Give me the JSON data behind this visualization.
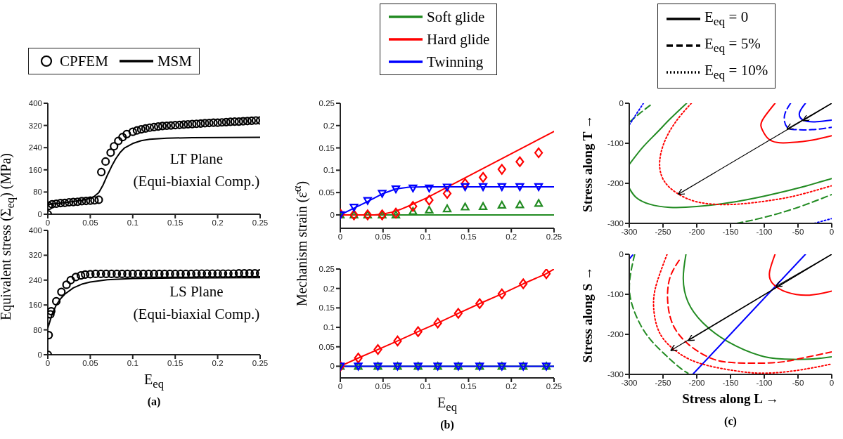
{
  "chart_data": [
    {
      "type": "line",
      "ylabel": "Equivalent stress (Σ$_{eq}$) (MPa)",
      "xlim": [
        0,
        0.25
      ],
      "xticks": [
        0,
        0.05,
        0.1,
        0.15,
        0.2,
        0.25
      ],
      "ylim": [
        0,
        400
      ],
      "yticks": [
        0,
        80,
        160,
        240,
        320,
        400
      ],
      "legend": "top",
      "annotations": [
        "LT Plane",
        "(Equi-biaxial Comp.)"
      ],
      "series": [
        {
          "name": "CPFEM",
          "type": "scatter",
          "marker": "circle",
          "color": "#000000",
          "x": [
            0,
            0.001,
            0.005,
            0.01,
            0.015,
            0.02,
            0.025,
            0.03,
            0.035,
            0.04,
            0.045,
            0.05,
            0.055,
            0.06,
            0.063,
            0.068,
            0.074,
            0.078,
            0.083,
            0.088,
            0.093,
            0.1,
            0.105,
            0.11,
            0.115,
            0.12,
            0.125,
            0.13,
            0.135,
            0.14,
            0.145,
            0.15,
            0.155,
            0.16,
            0.165,
            0.17,
            0.175,
            0.18,
            0.185,
            0.19,
            0.195,
            0.2,
            0.205,
            0.21,
            0.215,
            0.22,
            0.225,
            0.23,
            0.235,
            0.24,
            0.245,
            0.25
          ],
          "values": [
            0,
            30,
            36,
            38,
            40,
            41,
            43,
            44,
            45,
            47,
            48,
            49,
            50,
            52,
            152,
            190,
            222,
            245,
            264,
            278,
            289,
            297,
            302,
            306,
            309,
            312,
            314,
            316,
            318,
            319,
            320,
            321,
            322,
            323,
            324,
            325,
            326,
            327,
            328,
            329,
            330,
            330,
            331,
            332,
            333,
            334,
            334,
            335,
            336,
            337,
            338,
            338
          ]
        },
        {
          "name": "MSM",
          "line_style": "solid",
          "color": "#000000",
          "x": [
            0,
            0.02,
            0.04,
            0.05,
            0.055,
            0.06,
            0.065,
            0.07,
            0.075,
            0.08,
            0.085,
            0.09,
            0.1,
            0.11,
            0.12,
            0.14,
            0.17,
            0.25
          ],
          "values": [
            35,
            42,
            50,
            58,
            65,
            78,
            105,
            140,
            172,
            200,
            222,
            238,
            255,
            265,
            270,
            274,
            276,
            277
          ]
        }
      ]
    },
    {
      "type": "line",
      "title": "(a)",
      "xlabel": "E$_{eq}$",
      "xlim": [
        0,
        0.25
      ],
      "xticks": [
        0,
        0.05,
        0.1,
        0.15,
        0.2,
        0.25
      ],
      "ylim": [
        0,
        400
      ],
      "yticks": [
        0,
        80,
        160,
        240,
        320,
        400
      ],
      "annotations": [
        "LS Plane",
        "(Equi-biaxial Comp.)"
      ],
      "series": [
        {
          "type": "scatter",
          "marker": "circle",
          "color": "#000000",
          "x": [
            0,
            0.001,
            0.003,
            0.004,
            0.01,
            0.016,
            0.022,
            0.027,
            0.033,
            0.039,
            0.044,
            0.05,
            0.05625,
            0.0625,
            0.06875,
            0.075,
            0.08125,
            0.0875,
            0.09375,
            0.1,
            0.10625,
            0.1125,
            0.11875,
            0.125,
            0.13125,
            0.1375,
            0.14375,
            0.15,
            0.15625,
            0.1625,
            0.16875,
            0.175,
            0.18125,
            0.1875,
            0.19375,
            0.2,
            0.20625,
            0.2125,
            0.21875,
            0.225,
            0.23125,
            0.2375,
            0.24375,
            0.25
          ],
          "values": [
            0,
            63,
            130,
            140,
            172,
            202,
            225,
            240,
            250,
            255,
            258,
            259,
            260,
            260,
            260,
            260,
            260,
            260,
            260,
            260,
            260,
            260,
            260,
            260,
            260,
            260,
            260,
            260,
            260,
            260,
            260,
            261,
            261,
            261,
            261,
            261,
            261,
            261,
            261,
            262,
            262,
            262,
            262,
            262
          ]
        },
        {
          "line_style": "solid",
          "color": "#000000",
          "x": [
            0,
            0.005,
            0.01,
            0.015,
            0.02,
            0.03,
            0.04,
            0.05,
            0.07,
            0.1,
            0.15,
            0.25
          ],
          "values": [
            85,
            130,
            160,
            180,
            195,
            215,
            227,
            234,
            241,
            245,
            247,
            248
          ]
        }
      ]
    },
    {
      "type": "line",
      "ylabel": "Mechanism strain (ε̄$^{α}$)",
      "xlim": [
        0,
        0.25
      ],
      "xticks": [
        0,
        0.05,
        0.1,
        0.15,
        0.2,
        0.25
      ],
      "ylim": [
        -0.03,
        0.25
      ],
      "yticks": [
        0,
        0.05,
        0.1,
        0.15,
        0.2,
        0.25
      ],
      "legend": "top",
      "series": [
        {
          "name": "Soft glide",
          "line_style": "solid",
          "color": "#228b22",
          "x": [
            0,
            0.25
          ],
          "values": [
            0,
            0
          ]
        },
        {
          "name": "Hard glide",
          "line_style": "solid",
          "color": "#ff0000",
          "x": [
            0,
            0.04,
            0.05,
            0.06,
            0.07,
            0.08,
            0.1,
            0.25
          ],
          "values": [
            0,
            0,
            0.002,
            0.006,
            0.012,
            0.02,
            0.037,
            0.187
          ]
        },
        {
          "name": "Twinning",
          "line_style": "solid",
          "color": "#0000ff",
          "x": [
            0,
            0.016,
            0.032,
            0.049,
            0.065,
            0.08,
            0.1,
            0.25
          ],
          "values": [
            0,
            0.015,
            0.03,
            0.047,
            0.058,
            0.062,
            0.063,
            0.063
          ]
        },
        {
          "type": "scatter",
          "marker": "triangle",
          "color": "#228b22",
          "x": [
            0,
            0.016,
            0.032,
            0.049,
            0.065,
            0.085,
            0.104,
            0.125,
            0.146,
            0.167,
            0.189,
            0.21,
            0.232
          ],
          "values": [
            0,
            0,
            0,
            0,
            0,
            0.008,
            0.011,
            0.014,
            0.018,
            0.019,
            0.022,
            0.023,
            0.026
          ]
        },
        {
          "type": "scatter",
          "marker": "diamond",
          "color": "#ff0000",
          "x": [
            0,
            0.016,
            0.032,
            0.049,
            0.065,
            0.085,
            0.104,
            0.125,
            0.146,
            0.167,
            0.189,
            0.21,
            0.232
          ],
          "values": [
            0.002,
            0,
            0,
            0,
            0.004,
            0.019,
            0.033,
            0.048,
            0.07,
            0.084,
            0.102,
            0.119,
            0.139
          ]
        },
        {
          "type": "scatter",
          "marker": "triangle-down",
          "color": "#0000ff",
          "x": [
            0,
            0.016,
            0.032,
            0.049,
            0.065,
            0.085,
            0.104,
            0.125,
            0.146,
            0.167,
            0.189,
            0.21,
            0.232
          ],
          "values": [
            0,
            0.017,
            0.032,
            0.048,
            0.058,
            0.06,
            0.06,
            0.062,
            0.063,
            0.063,
            0.063,
            0.063,
            0.063
          ]
        }
      ]
    },
    {
      "type": "line",
      "title": "(b)",
      "xlabel": "E$_{eq}$",
      "xlim": [
        0,
        0.25
      ],
      "xticks": [
        0,
        0.05,
        0.1,
        0.15,
        0.2,
        0.25
      ],
      "ylim": [
        -0.03,
        0.25
      ],
      "yticks": [
        0,
        0.05,
        0.1,
        0.15,
        0.2,
        0.25
      ],
      "series": [
        {
          "line_style": "solid",
          "color": "#228b22",
          "x": [
            0,
            0.25
          ],
          "values": [
            0,
            0
          ]
        },
        {
          "line_style": "solid",
          "color": "#ff0000",
          "x": [
            0,
            0.021,
            0.044,
            0.067,
            0.091,
            0.114,
            0.138,
            0.163,
            0.189,
            0.214,
            0.241,
            0.25
          ],
          "values": [
            0,
            0.021,
            0.043,
            0.065,
            0.089,
            0.111,
            0.136,
            0.161,
            0.186,
            0.212,
            0.238,
            0.25
          ]
        },
        {
          "line_style": "solid",
          "color": "#0000ff",
          "x": [
            0,
            0.25
          ],
          "values": [
            0,
            0
          ]
        },
        {
          "type": "scatter",
          "marker": "triangle",
          "color": "#228b22",
          "x": [
            0,
            0.021,
            0.044,
            0.067,
            0.091,
            0.114,
            0.138,
            0.163,
            0.189,
            0.214,
            0.241
          ],
          "values": [
            0,
            0,
            0,
            0,
            0,
            0,
            0,
            0,
            0,
            0,
            0
          ]
        },
        {
          "type": "scatter",
          "marker": "diamond",
          "color": "#ff0000",
          "x": [
            0,
            0.021,
            0.044,
            0.067,
            0.091,
            0.114,
            0.138,
            0.163,
            0.189,
            0.214,
            0.241
          ],
          "values": [
            0,
            0.021,
            0.043,
            0.065,
            0.089,
            0.111,
            0.136,
            0.161,
            0.186,
            0.212,
            0.238
          ]
        },
        {
          "type": "scatter",
          "marker": "triangle-down",
          "color": "#0000ff",
          "x": [
            0,
            0.021,
            0.044,
            0.067,
            0.091,
            0.114,
            0.138,
            0.163,
            0.189,
            0.214,
            0.241
          ],
          "values": [
            0,
            0,
            0,
            0,
            0,
            0,
            0,
            0,
            0,
            0,
            0
          ]
        }
      ]
    },
    {
      "type": "line",
      "ylabel": "Stress along T →",
      "xlim": [
        -300,
        0
      ],
      "xticks": [
        -300,
        -250,
        -200,
        -150,
        -100,
        -50,
        0
      ],
      "ylim": [
        -300,
        0
      ],
      "yticks": [
        -300,
        -200,
        -100,
        0
      ],
      "annotations": [
        "E$_{eq}$ = 0",
        "E$_{eq}$ = 5%",
        "E$_{eq}$ = 10%"
      ],
      "series": [
        {
          "color": "#228b22",
          "line_style": "solid",
          "x": [
            -215,
            -240,
            -260,
            -280,
            -300,
            null,
            -300,
            -290,
            -270,
            -240,
            -200,
            -150,
            -100,
            -50,
            0
          ],
          "values": [
            0,
            -40,
            -75,
            -110,
            -153,
            null,
            -212,
            -235,
            -252,
            -260,
            -258,
            -248,
            -232,
            -212,
            -188
          ]
        },
        {
          "color": "#228b22",
          "line_style": "dashed",
          "x": [
            -299,
            -282,
            -265,
            null,
            -141,
            -100,
            -50,
            0
          ],
          "values": [
            -46,
            -22,
            0,
            null,
            -300,
            -285,
            -260,
            -228
          ]
        },
        {
          "color": "#0000ff",
          "line_style": "dotted",
          "x": [
            -300,
            -279,
            null,
            -26,
            0
          ],
          "values": [
            -54,
            0,
            null,
            -300,
            -288
          ]
        },
        {
          "color": "#ff0000",
          "line_style": "dotted",
          "x": [
            -208,
            -227,
            -246,
            -255,
            -248,
            -227,
            -198,
            -161,
            -125,
            -88,
            -51,
            0
          ],
          "values": [
            0,
            -37,
            -89,
            -148,
            -195,
            -227,
            -247,
            -253,
            -250,
            -242,
            -230,
            -206
          ]
        },
        {
          "color": "#ff0000",
          "line_style": "solid",
          "x": [
            -84,
            -103,
            -103,
            -95,
            -81,
            -59,
            -29,
            0
          ],
          "values": [
            0,
            -43,
            -66,
            -87,
            -98,
            -98,
            -92,
            -81
          ]
        },
        {
          "color": "#0000ff",
          "line_style": "solid",
          "x": [
            -39,
            -48,
            -41,
            -22,
            0
          ],
          "values": [
            0,
            -25,
            -43,
            -46,
            -42
          ]
        },
        {
          "color": "#0000ff",
          "line_style": "dashed",
          "x": [
            -61,
            -70,
            -66,
            -51,
            -29,
            0
          ],
          "values": [
            0,
            -31,
            -60,
            -66,
            -66,
            -60
          ]
        },
        {
          "color": "#000000",
          "x": [
            0,
            -227
          ],
          "values": [
            0,
            -227
          ]
        },
        {
          "color": "#000000",
          "x": [
            0,
            -66
          ],
          "values": [
            0,
            -64
          ]
        },
        {
          "color": "#000000",
          "x": [
            0,
            -42
          ],
          "values": [
            0,
            -43
          ]
        }
      ]
    },
    {
      "type": "line",
      "title": "(c)",
      "xlabel": "Stress along L →",
      "ylabel": "Stress along S →",
      "xlim": [
        -300,
        0
      ],
      "xticks": [
        -300,
        -250,
        -200,
        -150,
        -100,
        -50,
        0
      ],
      "ylim": [
        -300,
        0
      ],
      "yticks": [
        -300,
        -200,
        -100,
        0
      ],
      "series": [
        {
          "color": "#228b22",
          "line_style": "solid",
          "x": [
            -216,
            -220,
            -213,
            -191,
            -154,
            -106,
            -70,
            -33,
            0
          ],
          "values": [
            0,
            -60,
            -119,
            -171,
            -218,
            -253,
            -262,
            -262,
            -256
          ]
        },
        {
          "color": "#228b22",
          "line_style": "dashed",
          "x": [
            -292,
            -299,
            -297,
            -279,
            -253,
            -226,
            -213
          ],
          "values": [
            0,
            -60,
            -119,
            -189,
            -241,
            -282,
            -297
          ]
        },
        {
          "color": "#0000ff",
          "line_style": "solid",
          "x": [
            -206,
            -39,
            null,
            -300,
            -295
          ],
          "values": [
            -300,
            0,
            null,
            -12,
            -2
          ]
        },
        {
          "color": "#ff0000",
          "line_style": "dotted",
          "x": [
            -244,
            -257,
            -264,
            -257,
            -235,
            -198,
            -143,
            -106,
            -70,
            -33,
            0
          ],
          "values": [
            0,
            -60,
            -119,
            -189,
            -236,
            -271,
            -291,
            -297,
            -294,
            -285,
            -274
          ]
        },
        {
          "color": "#ff0000",
          "line_style": "dashed",
          "x": [
            -226,
            -240,
            -243,
            -235,
            -213,
            -180,
            -143,
            -88,
            -51,
            0
          ],
          "values": [
            -15,
            -60,
            -119,
            -177,
            -224,
            -259,
            -271,
            -271,
            -262,
            -244
          ]
        },
        {
          "color": "#ff0000",
          "line_style": "solid",
          "x": [
            -84,
            -92,
            -88,
            -66,
            -33,
            0
          ],
          "values": [
            0,
            -43,
            -72,
            -95,
            -102,
            -92
          ]
        },
        {
          "color": "#000000",
          "x": [
            0,
            -82
          ],
          "values": [
            0,
            -80
          ]
        },
        {
          "color": "#000000",
          "x": [
            0,
            -212
          ],
          "values": [
            0,
            -215
          ]
        },
        {
          "color": "#000000",
          "x": [
            0,
            -238
          ],
          "values": [
            0,
            -240
          ]
        }
      ]
    }
  ]
}
